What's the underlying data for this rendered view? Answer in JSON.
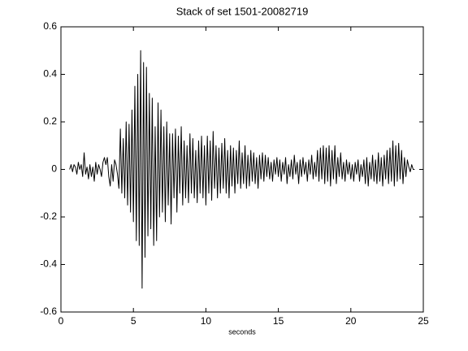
{
  "chart_data": {
    "type": "line",
    "title": "Stack of set 1501-20082719",
    "x_label": "seconds",
    "xlim": [
      0,
      25
    ],
    "xticks": [
      0,
      5,
      10,
      15,
      20,
      25
    ],
    "ylim": [
      -0.6,
      0.6
    ],
    "yticks": [
      -0.6,
      -0.4,
      -0.2,
      0,
      0.2,
      0.4,
      0.6
    ],
    "grid": false,
    "x": [
      0.6,
      0.7,
      0.8,
      0.9,
      1.0,
      1.1,
      1.2,
      1.3,
      1.4,
      1.5,
      1.6,
      1.7,
      1.8,
      1.9,
      2.0,
      2.1,
      2.2,
      2.3,
      2.4,
      2.5,
      2.6,
      2.7,
      2.8,
      2.9,
      3.0,
      3.1,
      3.2,
      3.3,
      3.4,
      3.5,
      3.6,
      3.7,
      3.8,
      3.9,
      4.0,
      4.1,
      4.2,
      4.3,
      4.4,
      4.5,
      4.6,
      4.7,
      4.8,
      4.9,
      5.0,
      5.1,
      5.2,
      5.3,
      5.4,
      5.5,
      5.6,
      5.7,
      5.8,
      5.9,
      6.0,
      6.1,
      6.2,
      6.3,
      6.4,
      6.5,
      6.6,
      6.7,
      6.8,
      6.9,
      7.0,
      7.1,
      7.2,
      7.3,
      7.4,
      7.5,
      7.6,
      7.7,
      7.8,
      7.9,
      8.0,
      8.1,
      8.2,
      8.3,
      8.4,
      8.5,
      8.6,
      8.7,
      8.8,
      8.9,
      9.0,
      9.1,
      9.2,
      9.3,
      9.4,
      9.5,
      9.6,
      9.7,
      9.8,
      9.9,
      10.0,
      10.1,
      10.2,
      10.3,
      10.4,
      10.5,
      10.6,
      10.7,
      10.8,
      10.9,
      11.0,
      11.1,
      11.2,
      11.3,
      11.4,
      11.5,
      11.6,
      11.7,
      11.8,
      11.9,
      12.0,
      12.1,
      12.2,
      12.3,
      12.4,
      12.5,
      12.6,
      12.7,
      12.8,
      12.9,
      13.0,
      13.1,
      13.2,
      13.3,
      13.4,
      13.5,
      13.6,
      13.7,
      13.8,
      13.9,
      14.0,
      14.1,
      14.2,
      14.3,
      14.4,
      14.5,
      14.6,
      14.7,
      14.8,
      14.9,
      15.0,
      15.1,
      15.2,
      15.3,
      15.4,
      15.5,
      15.6,
      15.7,
      15.8,
      15.9,
      16.0,
      16.1,
      16.2,
      16.3,
      16.4,
      16.5,
      16.6,
      16.7,
      16.8,
      16.9,
      17.0,
      17.1,
      17.2,
      17.3,
      17.4,
      17.5,
      17.6,
      17.7,
      17.8,
      17.9,
      18.0,
      18.1,
      18.2,
      18.3,
      18.4,
      18.5,
      18.6,
      18.7,
      18.8,
      18.9,
      19.0,
      19.1,
      19.2,
      19.3,
      19.4,
      19.5,
      19.6,
      19.7,
      19.8,
      19.9,
      20.0,
      20.1,
      20.2,
      20.3,
      20.4,
      20.5,
      20.6,
      20.7,
      20.8,
      20.9,
      21.0,
      21.1,
      21.2,
      21.3,
      21.4,
      21.5,
      21.6,
      21.7,
      21.8,
      21.9,
      22.0,
      22.1,
      22.2,
      22.3,
      22.4,
      22.5,
      22.6,
      22.7,
      22.8,
      22.9,
      23.0,
      23.1,
      23.2,
      23.3,
      23.4,
      23.5,
      23.6,
      23.7,
      23.8,
      23.9,
      24.0,
      24.1,
      24.2,
      24.3,
      24.4
    ],
    "series": [
      {
        "color": "#000000",
        "values": [
          0,
          0.02,
          -0.01,
          0.02,
          0.01,
          -0.02,
          0.03,
          0.0,
          0.02,
          -0.03,
          0.07,
          -0.02,
          0.01,
          -0.04,
          0.02,
          -0.03,
          0.01,
          -0.05,
          0.03,
          -0.02,
          0.02,
          0.0,
          -0.03,
          0.03,
          0.05,
          0.02,
          0.05,
          -0.03,
          -0.07,
          0.02,
          -0.05,
          0.04,
          0.02,
          -0.02,
          -0.08,
          0.17,
          -0.1,
          0.13,
          -0.12,
          0.2,
          -0.15,
          0.19,
          -0.18,
          0.25,
          -0.22,
          0.35,
          -0.3,
          0.4,
          -0.32,
          0.5,
          -0.5,
          0.45,
          -0.37,
          0.43,
          -0.28,
          0.32,
          -0.25,
          0.3,
          -0.32,
          0.18,
          -0.3,
          0.28,
          -0.2,
          0.25,
          -0.18,
          0.18,
          -0.22,
          0.2,
          -0.15,
          0.15,
          -0.23,
          0.15,
          -0.12,
          0.17,
          -0.18,
          0.14,
          -0.1,
          0.18,
          -0.15,
          0.12,
          -0.12,
          0.1,
          -0.14,
          0.15,
          -0.1,
          0.13,
          -0.12,
          0.08,
          -0.14,
          0.12,
          -0.1,
          0.14,
          -0.12,
          0.1,
          -0.15,
          0.14,
          -0.1,
          0.12,
          -0.13,
          0.16,
          -0.08,
          0.1,
          -0.12,
          0.09,
          -0.1,
          0.11,
          -0.08,
          0.13,
          -0.1,
          0.08,
          -0.12,
          0.1,
          -0.07,
          0.09,
          -0.1,
          0.08,
          -0.06,
          0.12,
          -0.08,
          0.07,
          -0.06,
          0.1,
          -0.08,
          0.06,
          -0.07,
          0.08,
          -0.05,
          0.07,
          -0.06,
          0.05,
          -0.08,
          0.06,
          -0.04,
          0.07,
          -0.05,
          0.06,
          -0.03,
          0.05,
          -0.04,
          0.03,
          -0.05,
          0.04,
          -0.02,
          0.05,
          -0.03,
          0.04,
          -0.05,
          0.03,
          -0.02,
          0.05,
          -0.06,
          0.02,
          -0.03,
          0.04,
          -0.04,
          0.06,
          -0.02,
          0.03,
          -0.06,
          0.04,
          -0.03,
          0.05,
          -0.02,
          0.03,
          -0.05,
          0.04,
          -0.02,
          0.06,
          -0.04,
          0.03,
          -0.03,
          0.08,
          -0.05,
          0.09,
          -0.04,
          0.1,
          -0.06,
          0.09,
          -0.05,
          0.1,
          -0.07,
          0.08,
          -0.04,
          0.1,
          -0.06,
          0.05,
          -0.03,
          0.07,
          -0.04,
          0.03,
          -0.05,
          0.04,
          -0.02,
          0.03,
          -0.04,
          0.02,
          -0.05,
          0.03,
          -0.02,
          0.04,
          -0.05,
          0.02,
          -0.03,
          0.04,
          -0.06,
          0.05,
          -0.07,
          0.03,
          -0.04,
          0.06,
          -0.05,
          0.04,
          -0.06,
          0.07,
          -0.05,
          0.05,
          -0.07,
          0.06,
          -0.04,
          0.08,
          -0.06,
          0.09,
          -0.05,
          0.12,
          -0.07,
          0.1,
          -0.05,
          0.11,
          -0.04,
          0.08,
          -0.06,
          0.05,
          -0.03,
          0.04,
          0.01,
          -0.01,
          0.02,
          0.0,
          0.0
        ]
      }
    ]
  }
}
